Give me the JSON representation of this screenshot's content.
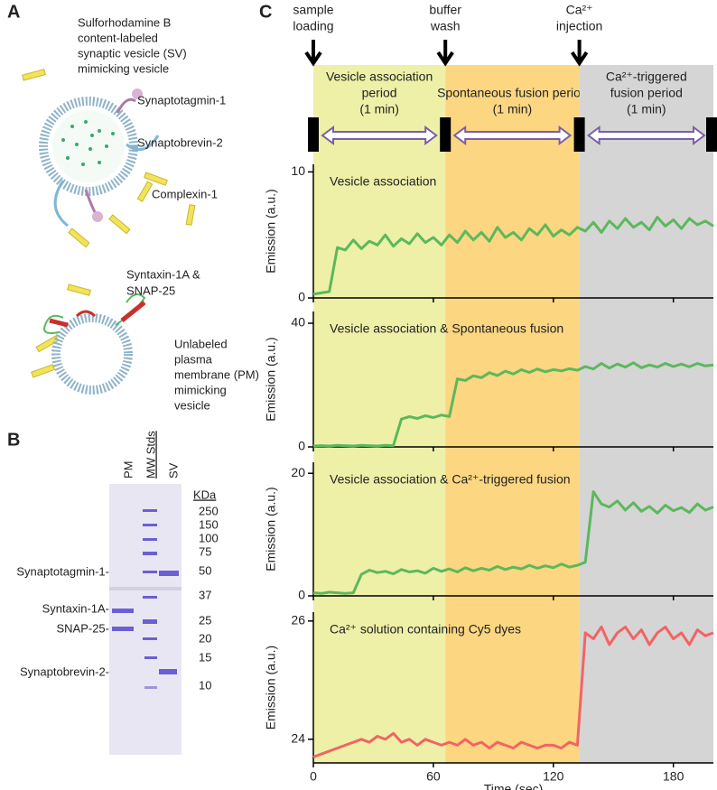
{
  "panel_labels": [
    "A",
    "B",
    "C"
  ],
  "panel_a": {
    "sv_lines": [
      "Sulforhodamine B",
      "content-labeled",
      "synaptic vesicle (SV)",
      "mimicking vesicle"
    ],
    "synaptotagmin": "Synaptotagmin-1",
    "synaptobrevin": "Synaptobrevin-2",
    "complexin": "Complexin-1",
    "syntaxin_lines": [
      "Syntaxin-1A &",
      "SNAP-25"
    ],
    "pm_lines": [
      "Unlabeled",
      "plasma",
      "membrane (PM)",
      "mimicking",
      "vesicle"
    ]
  },
  "panel_b": {
    "lanes": [
      "PM",
      "MW Stds",
      "SV"
    ],
    "unit": "KDa",
    "markers": [
      250,
      150,
      100,
      75,
      50,
      37,
      25,
      20,
      15,
      10
    ],
    "proteins": [
      "Synaptotagmin-1-",
      "Syntaxin-1A-",
      "SNAP-25-",
      "Synaptobrevin-2-"
    ]
  },
  "panel_c": {
    "events": [
      {
        "lines": [
          "sample",
          "loading"
        ]
      },
      {
        "lines": [
          "buffer",
          "wash"
        ]
      },
      {
        "lines": [
          "Ca²⁺",
          "injection"
        ]
      }
    ],
    "periods": [
      {
        "lines": [
          "Vesicle association",
          "period",
          "(1 min)"
        ],
        "start": 0,
        "end": 66,
        "color": "#eef0a8"
      },
      {
        "lines": [
          "Spontaneous fusion period",
          "(1 min)"
        ],
        "start": 66,
        "end": 133,
        "color": "#fcd680"
      },
      {
        "lines": [
          "Ca²⁺-triggered",
          "fusion period",
          "(1 min)"
        ],
        "start": 133,
        "end": 200,
        "color": "#d5d5d5"
      }
    ]
  },
  "chart_data": [
    {
      "type": "line",
      "annotation": "Vesicle association",
      "ylabel": "Emission (a.u.)",
      "xlim": [
        0,
        200
      ],
      "ylim": [
        0,
        10.6
      ],
      "yticks": [
        0,
        10
      ],
      "x": [
        0,
        4,
        8,
        12,
        16,
        20,
        24,
        28,
        32,
        36,
        40,
        44,
        48,
        52,
        56,
        60,
        64,
        68,
        72,
        76,
        80,
        84,
        88,
        92,
        96,
        100,
        104,
        108,
        112,
        116,
        120,
        124,
        128,
        132,
        136,
        140,
        144,
        148,
        152,
        156,
        160,
        164,
        168,
        172,
        176,
        180,
        184,
        188,
        192,
        196,
        200
      ],
      "series": [
        {
          "color": "#5cb85c",
          "values": [
            0.3,
            0.4,
            0.5,
            4.0,
            3.8,
            4.6,
            3.9,
            4.5,
            4.2,
            5.0,
            4.1,
            4.7,
            4.3,
            5.1,
            4.4,
            4.8,
            4.2,
            5.0,
            4.4,
            5.3,
            4.6,
            5.2,
            4.5,
            5.6,
            4.8,
            5.2,
            4.6,
            5.5,
            5.0,
            5.8,
            4.9,
            5.4,
            5.0,
            5.6,
            5.3,
            6.0,
            5.2,
            6.1,
            5.5,
            6.3,
            5.6,
            6.0,
            5.4,
            6.4,
            5.7,
            6.2,
            5.5,
            6.3,
            5.8,
            6.1,
            5.7
          ]
        }
      ]
    },
    {
      "type": "line",
      "annotation": "Vesicle association & Spontaneous fusion",
      "ylabel": "Emission (a.u.)",
      "xlim": [
        0,
        200
      ],
      "ylim": [
        0,
        43.8
      ],
      "yticks": [
        0,
        40
      ],
      "x": [
        0,
        4,
        8,
        12,
        16,
        20,
        24,
        28,
        32,
        36,
        40,
        44,
        48,
        52,
        56,
        60,
        64,
        68,
        72,
        76,
        80,
        84,
        88,
        92,
        96,
        100,
        104,
        108,
        112,
        116,
        120,
        124,
        128,
        132,
        136,
        140,
        144,
        148,
        152,
        156,
        160,
        164,
        168,
        172,
        176,
        180,
        184,
        188,
        192,
        196,
        200
      ],
      "series": [
        {
          "color": "#5cb85c",
          "values": [
            0.3,
            0.4,
            0.3,
            0.5,
            0.4,
            0.3,
            0.5,
            0.4,
            0.3,
            0.5,
            0.4,
            9.0,
            9.8,
            9.2,
            10.1,
            9.5,
            10.3,
            9.8,
            22.0,
            21.5,
            23.0,
            22.4,
            24.0,
            23.1,
            24.5,
            23.6,
            25.0,
            24.1,
            25.2,
            24.3,
            25.0,
            24.6,
            25.3,
            24.8,
            26.0,
            25.2,
            27.0,
            25.5,
            26.8,
            25.8,
            27.2,
            25.6,
            26.5,
            25.8,
            27.0,
            26.0,
            26.8,
            25.9,
            27.0,
            26.2,
            26.5
          ]
        }
      ]
    },
    {
      "type": "line",
      "annotation": "Vesicle association & Ca²⁺-triggered fusion",
      "ylabel": "Emission (a.u.)",
      "xlim": [
        0,
        200
      ],
      "ylim": [
        0,
        21.8
      ],
      "yticks": [
        0,
        20
      ],
      "x": [
        0,
        4,
        8,
        12,
        16,
        20,
        24,
        28,
        32,
        36,
        40,
        44,
        48,
        52,
        56,
        60,
        64,
        68,
        72,
        76,
        80,
        84,
        88,
        92,
        96,
        100,
        104,
        108,
        112,
        116,
        120,
        124,
        128,
        132,
        136,
        140,
        144,
        148,
        152,
        156,
        160,
        164,
        168,
        172,
        176,
        180,
        184,
        188,
        192,
        196,
        200
      ],
      "series": [
        {
          "color": "#5cb85c",
          "values": [
            0.5,
            0.4,
            0.6,
            0.5,
            0.4,
            0.5,
            3.5,
            4.2,
            3.8,
            4.0,
            3.6,
            4.3,
            3.9,
            4.1,
            3.7,
            4.5,
            4.0,
            4.4,
            3.9,
            4.6,
            4.1,
            4.5,
            4.2,
            4.8,
            4.3,
            4.7,
            4.4,
            5.0,
            4.5,
            4.9,
            4.6,
            5.2,
            4.7,
            5.0,
            5.5,
            17.0,
            15.0,
            14.5,
            15.5,
            14.0,
            15.2,
            13.8,
            14.6,
            13.5,
            14.8,
            13.9,
            14.4,
            13.6,
            15.0,
            14.0,
            14.5
          ]
        }
      ]
    },
    {
      "type": "line",
      "annotation": "Ca²⁺ solution containing Cy5 dyes",
      "ylabel": "Emission (a.u.)",
      "xlabel": "Time (sec)",
      "xlim": [
        0,
        200
      ],
      "xticks": [
        0,
        60,
        120,
        180
      ],
      "ylim": [
        23.6,
        26.15
      ],
      "yticks": [
        24,
        26
      ],
      "x": [
        0,
        4,
        8,
        12,
        16,
        20,
        24,
        28,
        32,
        36,
        40,
        44,
        48,
        52,
        56,
        60,
        64,
        68,
        72,
        76,
        80,
        84,
        88,
        92,
        96,
        100,
        104,
        108,
        112,
        116,
        120,
        124,
        128,
        132,
        136,
        140,
        144,
        148,
        152,
        156,
        160,
        164,
        168,
        172,
        176,
        180,
        184,
        188,
        192,
        196,
        200
      ],
      "series": [
        {
          "color": "#f26464",
          "values": [
            23.7,
            23.75,
            23.8,
            23.85,
            23.9,
            23.95,
            24.0,
            23.95,
            24.05,
            24.0,
            24.1,
            23.95,
            24.0,
            23.9,
            24.0,
            23.95,
            23.9,
            23.95,
            23.9,
            24.0,
            23.9,
            23.95,
            23.85,
            23.95,
            23.9,
            23.85,
            23.95,
            23.9,
            23.85,
            23.9,
            23.9,
            23.85,
            23.95,
            23.9,
            25.8,
            25.7,
            25.9,
            25.6,
            25.8,
            25.9,
            25.7,
            25.85,
            25.6,
            25.8,
            25.9,
            25.7,
            25.8,
            25.6,
            25.85,
            25.75,
            25.8
          ]
        }
      ]
    }
  ]
}
